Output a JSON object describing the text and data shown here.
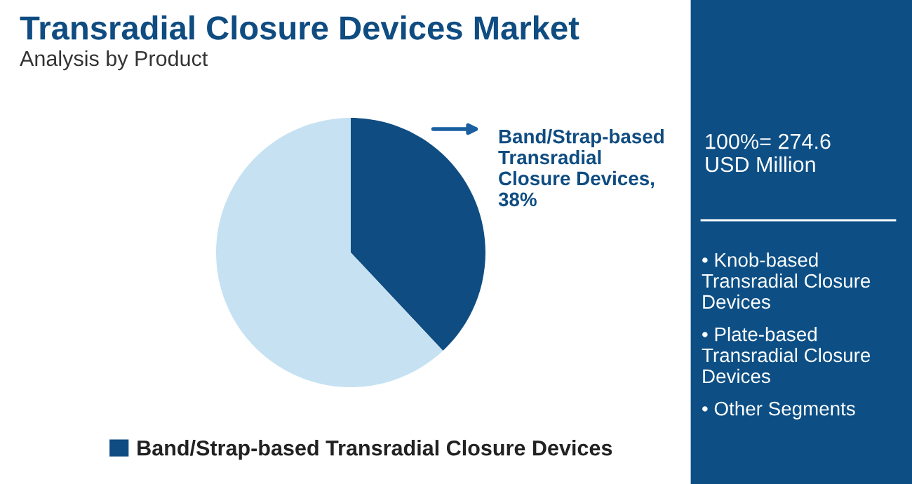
{
  "chart_data": {
    "type": "pie",
    "title": "Transradial Closure Devices Market",
    "subtitle": "Analysis by Product",
    "categories": [
      "Band/Strap-based Transradial Closure Devices",
      null
    ],
    "values": [
      38,
      62
    ],
    "colors": [
      "#0f4c81",
      "#c6e2f2"
    ],
    "value_labels": [
      "Band/Strap-based\nTransradial\nClosure Devices,\n38%",
      null
    ],
    "annotations": [
      "100%= 274.6\nUSD Million",
      "• Knob-based\nTransradial Closure\nDevices",
      "• Plate-based\nTransradial Closure\nDevices",
      "• Other Segments"
    ],
    "legend": "bottom"
  }
}
